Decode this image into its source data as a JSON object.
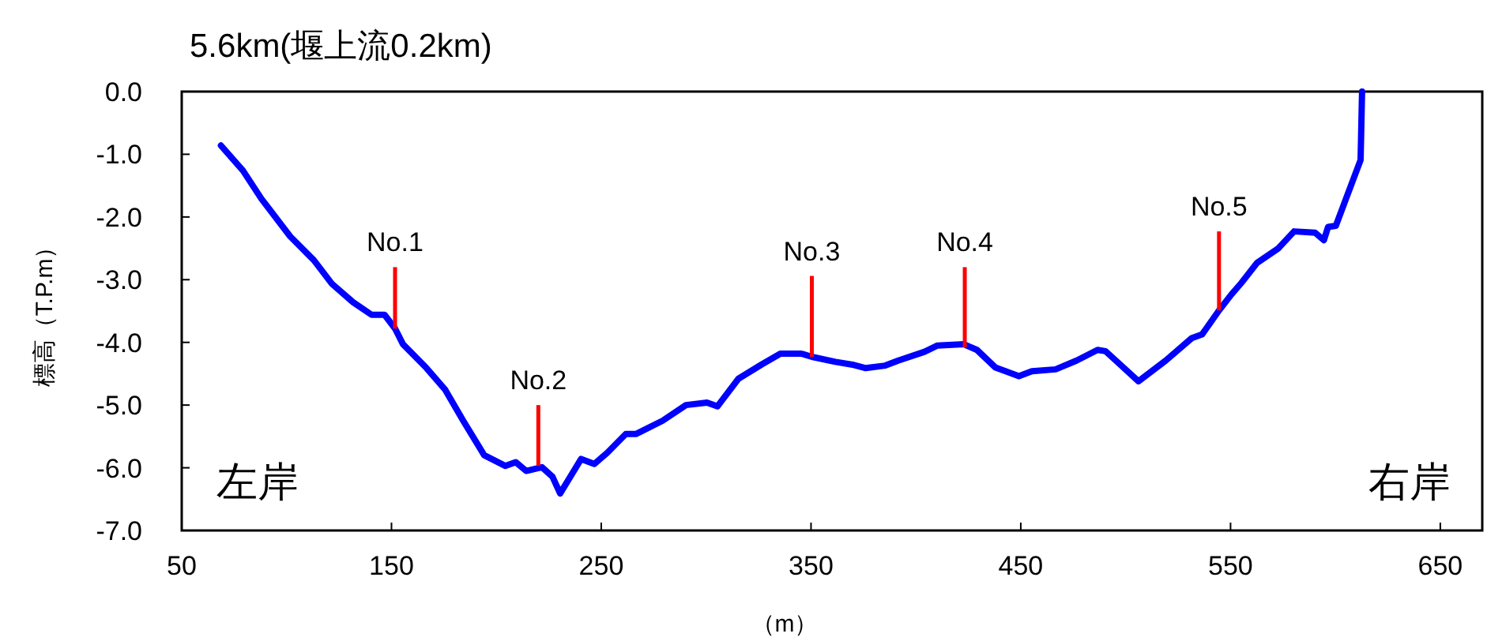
{
  "chart_data": {
    "type": "line",
    "title": "5.6km(堰上流0.2km)",
    "xlabel": "（m）",
    "ylabel": "標高（T.P.m）",
    "annotations": [
      "左岸",
      "右岸"
    ],
    "xlim": [
      50,
      670
    ],
    "ylim": [
      -7,
      0
    ],
    "xticks": [
      50,
      150,
      250,
      350,
      450,
      550,
      650
    ],
    "yticks": [
      {
        "value": 0,
        "label": "0.0"
      },
      {
        "value": -1,
        "label": "-1.0"
      },
      {
        "value": -2,
        "label": "-2.0"
      },
      {
        "value": -3,
        "label": "-3.0"
      },
      {
        "value": -4,
        "label": "-4.0"
      },
      {
        "value": -5,
        "label": "-5.0"
      },
      {
        "value": -6,
        "label": "-6.0"
      },
      {
        "value": -7,
        "label": "-7.0"
      }
    ],
    "series": [
      {
        "color": "#0000ff",
        "x": [
          68.7,
          79.2,
          88,
          101.7,
          113,
          121.7,
          131.7,
          140.5,
          146.7,
          151.7,
          155.5,
          166.7,
          175.5,
          184.2,
          194.2,
          204.2,
          209.2,
          214.2,
          221.7,
          226.7,
          230.4,
          240.4,
          246.7,
          252.9,
          261.7,
          266.7,
          279.2,
          290.4,
          300.4,
          305.4,
          315.4,
          326.6,
          335.4,
          345.4,
          350.4,
          361.6,
          370.4,
          376.1,
          385.4,
          391.6,
          404.1,
          410.3,
          422.9,
          429.1,
          437.9,
          449.1,
          455.3,
          466.6,
          476.6,
          486.6,
          490.4,
          496.6,
          506.1,
          519.1,
          531.6,
          536.5,
          544.5,
          550.3,
          555.2,
          562.7,
          572.8,
          580.3,
          590.3,
          594.5,
          596.5,
          600.2,
          612,
          612.7
        ],
        "values": [
          -0.86,
          -1.26,
          -1.71,
          -2.31,
          -2.69,
          -3.07,
          -3.36,
          -3.56,
          -3.56,
          -3.78,
          -4.03,
          -4.41,
          -4.75,
          -5.25,
          -5.8,
          -5.97,
          -5.91,
          -6.05,
          -5.99,
          -6.14,
          -6.41,
          -5.86,
          -5.94,
          -5.76,
          -5.46,
          -5.46,
          -5.25,
          -5.0,
          -4.96,
          -5.02,
          -4.58,
          -4.35,
          -4.18,
          -4.18,
          -4.23,
          -4.31,
          -4.36,
          -4.41,
          -4.37,
          -4.29,
          -4.15,
          -4.05,
          -4.03,
          -4.12,
          -4.4,
          -4.54,
          -4.46,
          -4.43,
          -4.29,
          -4.12,
          -4.14,
          -4.33,
          -4.62,
          -4.29,
          -3.93,
          -3.87,
          -3.49,
          -3.24,
          -3.05,
          -2.73,
          -2.5,
          -2.23,
          -2.25,
          -2.37,
          -2.16,
          -2.14,
          -1.09,
          0.0
        ]
      },
      {
        "name": "No.1",
        "color": "#ff0000",
        "x": [
          151.7,
          151.7
        ],
        "values": [
          -2.8,
          -3.78
        ]
      },
      {
        "name": "No.2",
        "color": "#ff0000",
        "x": [
          220,
          220
        ],
        "values": [
          -5.0,
          -5.97
        ]
      },
      {
        "name": "No.3",
        "color": "#ff0000",
        "x": [
          350.4,
          350.4
        ],
        "values": [
          -2.94,
          -4.23
        ]
      },
      {
        "name": "No.4",
        "color": "#ff0000",
        "x": [
          423.3,
          423.3
        ],
        "values": [
          -2.8,
          -4.08
        ]
      },
      {
        "name": "No.5",
        "color": "#ff0000",
        "x": [
          544.5,
          544.5
        ],
        "values": [
          -2.23,
          -3.49
        ]
      }
    ]
  }
}
